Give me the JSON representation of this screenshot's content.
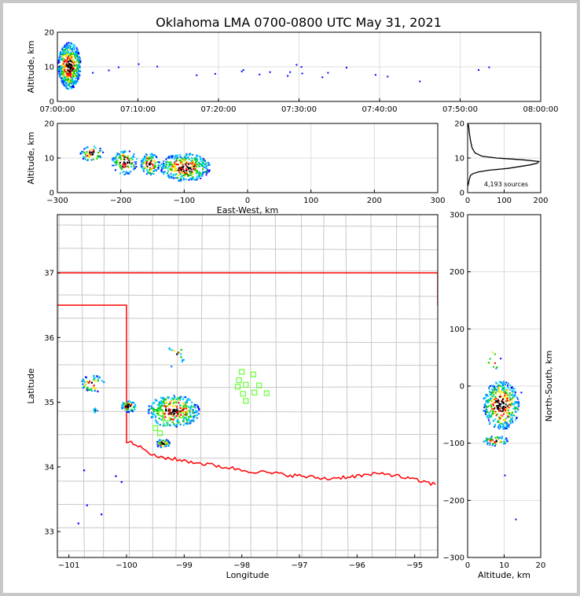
{
  "title": "Oklahoma LMA 0700-0800 UTC May 31, 2021",
  "source_count": "4,193 sources",
  "colors": {
    "border": "#ff0000",
    "counties": "#c8c8c8",
    "grid": "#dddddd",
    "stations": "#66ff33",
    "density": [
      "#0000ff",
      "#0080ff",
      "#00ccff",
      "#00cc00",
      "#ffdd00",
      "#ff0000",
      "#000000"
    ]
  },
  "chart_data": [
    {
      "type": "scatter",
      "id": "time_altitude",
      "title": "Oklahoma LMA 0700-0800 UTC May 31, 2021",
      "xlabel": "",
      "ylabel": "Altitude, km",
      "xlim": [
        0,
        60
      ],
      "ylim": [
        0,
        20
      ],
      "xticks": [
        "07:00:00",
        "07:10:00",
        "07:20:00",
        "07:30:00",
        "07:40:00",
        "07:50:00",
        "08:00:00"
      ],
      "yticks": [
        0,
        10,
        20
      ],
      "clusters": [
        {
          "x": [
            0,
            2.8
          ],
          "y": [
            3,
            18
          ],
          "n": 520
        }
      ],
      "points": [
        {
          "x": 4.3,
          "y": 8.5
        },
        {
          "x": 6.3,
          "y": 9.2
        },
        {
          "x": 7.5,
          "y": 10.1
        },
        {
          "x": 10.0,
          "y": 11.0
        },
        {
          "x": 12.3,
          "y": 10.3
        },
        {
          "x": 17.2,
          "y": 7.8
        },
        {
          "x": 19.5,
          "y": 8.2
        },
        {
          "x": 22.8,
          "y": 8.9
        },
        {
          "x": 23.0,
          "y": 9.3
        },
        {
          "x": 25.0,
          "y": 8.0
        },
        {
          "x": 26.3,
          "y": 8.7
        },
        {
          "x": 28.5,
          "y": 7.6
        },
        {
          "x": 28.8,
          "y": 8.7
        },
        {
          "x": 29.6,
          "y": 10.8
        },
        {
          "x": 30.2,
          "y": 10.2
        },
        {
          "x": 30.3,
          "y": 8.3
        },
        {
          "x": 32.8,
          "y": 7.2
        },
        {
          "x": 33.5,
          "y": 8.5
        },
        {
          "x": 35.8,
          "y": 10.0
        },
        {
          "x": 39.4,
          "y": 7.9
        },
        {
          "x": 40.9,
          "y": 7.4
        },
        {
          "x": 44.9,
          "y": 6.0
        },
        {
          "x": 52.2,
          "y": 9.3
        },
        {
          "x": 53.5,
          "y": 10.1
        }
      ]
    },
    {
      "type": "scatter",
      "id": "eastwest_altitude",
      "xlabel": "East-West, km",
      "ylabel": "Altitude, km",
      "xlim": [
        -300,
        300
      ],
      "ylim": [
        0,
        20
      ],
      "xticks": [
        -300,
        -200,
        -100,
        0,
        100,
        200,
        300
      ],
      "yticks": [
        0,
        10,
        20
      ],
      "clusters": [
        {
          "x": [
            -265,
            -228
          ],
          "y": [
            9,
            14
          ],
          "n": 55
        },
        {
          "x": [
            -215,
            -175
          ],
          "y": [
            5,
            13
          ],
          "n": 120
        },
        {
          "x": [
            -170,
            -140
          ],
          "y": [
            5,
            12
          ],
          "n": 120
        },
        {
          "x": [
            -140,
            -60
          ],
          "y": [
            3,
            12
          ],
          "n": 380
        }
      ]
    },
    {
      "type": "line",
      "id": "altitude_histogram",
      "xlabel": "",
      "ylabel": "",
      "xlim": [
        0,
        200
      ],
      "ylim": [
        0,
        20
      ],
      "xticks": [
        0,
        100,
        200
      ],
      "yticks": [
        0,
        10,
        20
      ],
      "annotation": "4,193 sources",
      "profile": [
        [
          1,
          2
        ],
        [
          3,
          3
        ],
        [
          5,
          4
        ],
        [
          8,
          5
        ],
        [
          15,
          5.5
        ],
        [
          30,
          6
        ],
        [
          60,
          6.5
        ],
        [
          110,
          7
        ],
        [
          170,
          8
        ],
        [
          190,
          8.5
        ],
        [
          195,
          9
        ],
        [
          150,
          9.5
        ],
        [
          80,
          10
        ],
        [
          40,
          10.5
        ],
        [
          20,
          11.5
        ],
        [
          12,
          13
        ],
        [
          8,
          15
        ],
        [
          5,
          17
        ],
        [
          3,
          19
        ],
        [
          1,
          20
        ]
      ]
    },
    {
      "type": "scatter",
      "id": "plan_view",
      "xlabel": "Longitude",
      "ylabel": "Latitude",
      "xlim": [
        -101.2,
        -94.6
      ],
      "ylim": [
        32.6,
        37.9
      ],
      "xticks": [
        -101,
        -100,
        -99,
        -98,
        -97,
        -96,
        -95
      ],
      "yticks": [
        33,
        34,
        35,
        36,
        37
      ],
      "clusters": [
        {
          "x": [
            -100.8,
            -100.4
          ],
          "y": [
            35.15,
            35.45
          ],
          "n": 45
        },
        {
          "x": [
            -100.6,
            -100.52
          ],
          "y": [
            34.85,
            34.92
          ],
          "n": 8
        },
        {
          "x": [
            -100.1,
            -99.85
          ],
          "y": [
            34.85,
            35.05
          ],
          "n": 50
        },
        {
          "x": [
            -99.65,
            -98.75
          ],
          "y": [
            34.6,
            35.15
          ],
          "n": 280
        },
        {
          "x": [
            -99.5,
            -99.25
          ],
          "y": [
            34.3,
            34.45
          ],
          "n": 40
        },
        {
          "x": [
            -99.3,
            -99.0
          ],
          "y": [
            35.5,
            35.95
          ],
          "n": 14
        }
      ],
      "points": [
        {
          "x": -100.75,
          "y": 33.96
        },
        {
          "x": -100.7,
          "y": 33.42
        },
        {
          "x": -100.85,
          "y": 33.14
        },
        {
          "x": -100.2,
          "y": 33.87
        },
        {
          "x": -100.1,
          "y": 33.78
        },
        {
          "x": -100.45,
          "y": 33.28
        }
      ],
      "stations": [
        {
          "x": -98.0,
          "y": 35.47
        },
        {
          "x": -97.8,
          "y": 35.43
        },
        {
          "x": -98.05,
          "y": 35.34
        },
        {
          "x": -98.07,
          "y": 35.24
        },
        {
          "x": -97.93,
          "y": 35.27
        },
        {
          "x": -97.7,
          "y": 35.26
        },
        {
          "x": -97.57,
          "y": 35.14
        },
        {
          "x": -97.78,
          "y": 35.15
        },
        {
          "x": -97.98,
          "y": 35.13
        },
        {
          "x": -97.93,
          "y": 35.02
        },
        {
          "x": -99.4,
          "y": 34.83
        },
        {
          "x": -99.05,
          "y": 34.8
        },
        {
          "x": -99.32,
          "y": 34.68
        },
        {
          "x": -99.5,
          "y": 34.6
        },
        {
          "x": -99.42,
          "y": 34.52
        }
      ]
    },
    {
      "type": "scatter",
      "id": "altitude_northsouth",
      "xlabel": "Altitude, km",
      "ylabel": "North-South, km",
      "xlim": [
        0,
        20
      ],
      "ylim": [
        -300,
        300
      ],
      "xticks": [
        0,
        10,
        20
      ],
      "yticks": [
        -300,
        -200,
        -100,
        0,
        100,
        200,
        300
      ],
      "clusters": [
        {
          "x": [
            4,
            14
          ],
          "y": [
            -80,
            15
          ],
          "n": 420
        },
        {
          "x": [
            4,
            11
          ],
          "y": [
            -105,
            -85
          ],
          "n": 60
        },
        {
          "x": [
            5,
            9
          ],
          "y": [
            25,
            70
          ],
          "n": 10
        }
      ],
      "points": [
        {
          "x": 10,
          "y": -155
        },
        {
          "x": 13,
          "y": -232
        },
        {
          "x": 14.5,
          "y": -10
        }
      ]
    }
  ]
}
